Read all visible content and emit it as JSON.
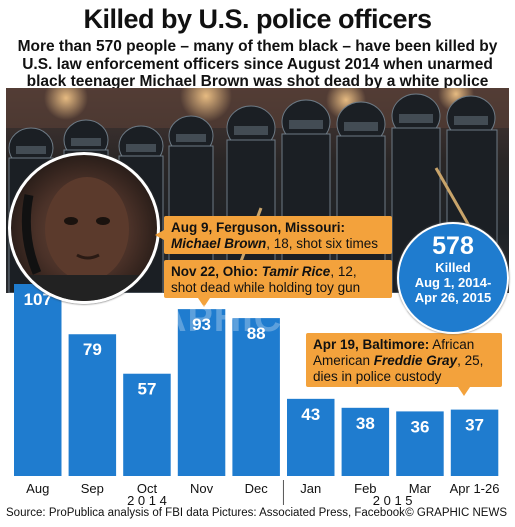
{
  "title": "Killed by U.S. police officers",
  "subtitle": "More than 570 people – many of them black – have been killed by U.S. law enforcement officers since August 2014 when unarmed black teenager Michael Brown was shot dead by a white police officer",
  "badge": {
    "number": "578",
    "line1": "Killed",
    "line2": "Aug 1, 2014-",
    "line3": "Apr 26, 2015"
  },
  "callouts": [
    {
      "lead": "Aug 9, Ferguson, Missouri:",
      "name": "Michael Brown",
      "rest": ", 18, shot six times"
    },
    {
      "lead": "Nov 22, Ohio:",
      "name": "Tamir Rice",
      "rest": ", 12, shot dead while holding toy gun"
    },
    {
      "lead": "Apr 19, Baltimore:",
      "pre": " African American ",
      "name": "Freddie Gray",
      "rest": ", 25, dies in police custody"
    }
  ],
  "source": "Source: ProPublica analysis of FBI data  Pictures: Associated Press, Facebook",
  "credit": "© GRAPHIC NEWS",
  "watermark": "GRAPHIC NEWS",
  "colors": {
    "bar": "#1f7ccf",
    "callout": "#f3a23c",
    "badge": "#1f7ccf"
  },
  "chart_data": {
    "type": "bar",
    "categories": [
      "Aug",
      "Sep",
      "Oct",
      "Nov",
      "Dec",
      "Jan",
      "Feb",
      "Mar",
      "Apr 1-26"
    ],
    "values": [
      107,
      79,
      57,
      93,
      88,
      43,
      38,
      36,
      37
    ],
    "year_groups": [
      {
        "label": "2 0 1 4",
        "from": 0,
        "to": 4
      },
      {
        "label": "2 0 1 5",
        "from": 5,
        "to": 8
      }
    ],
    "ylim": [
      0,
      107
    ],
    "grid": false
  }
}
